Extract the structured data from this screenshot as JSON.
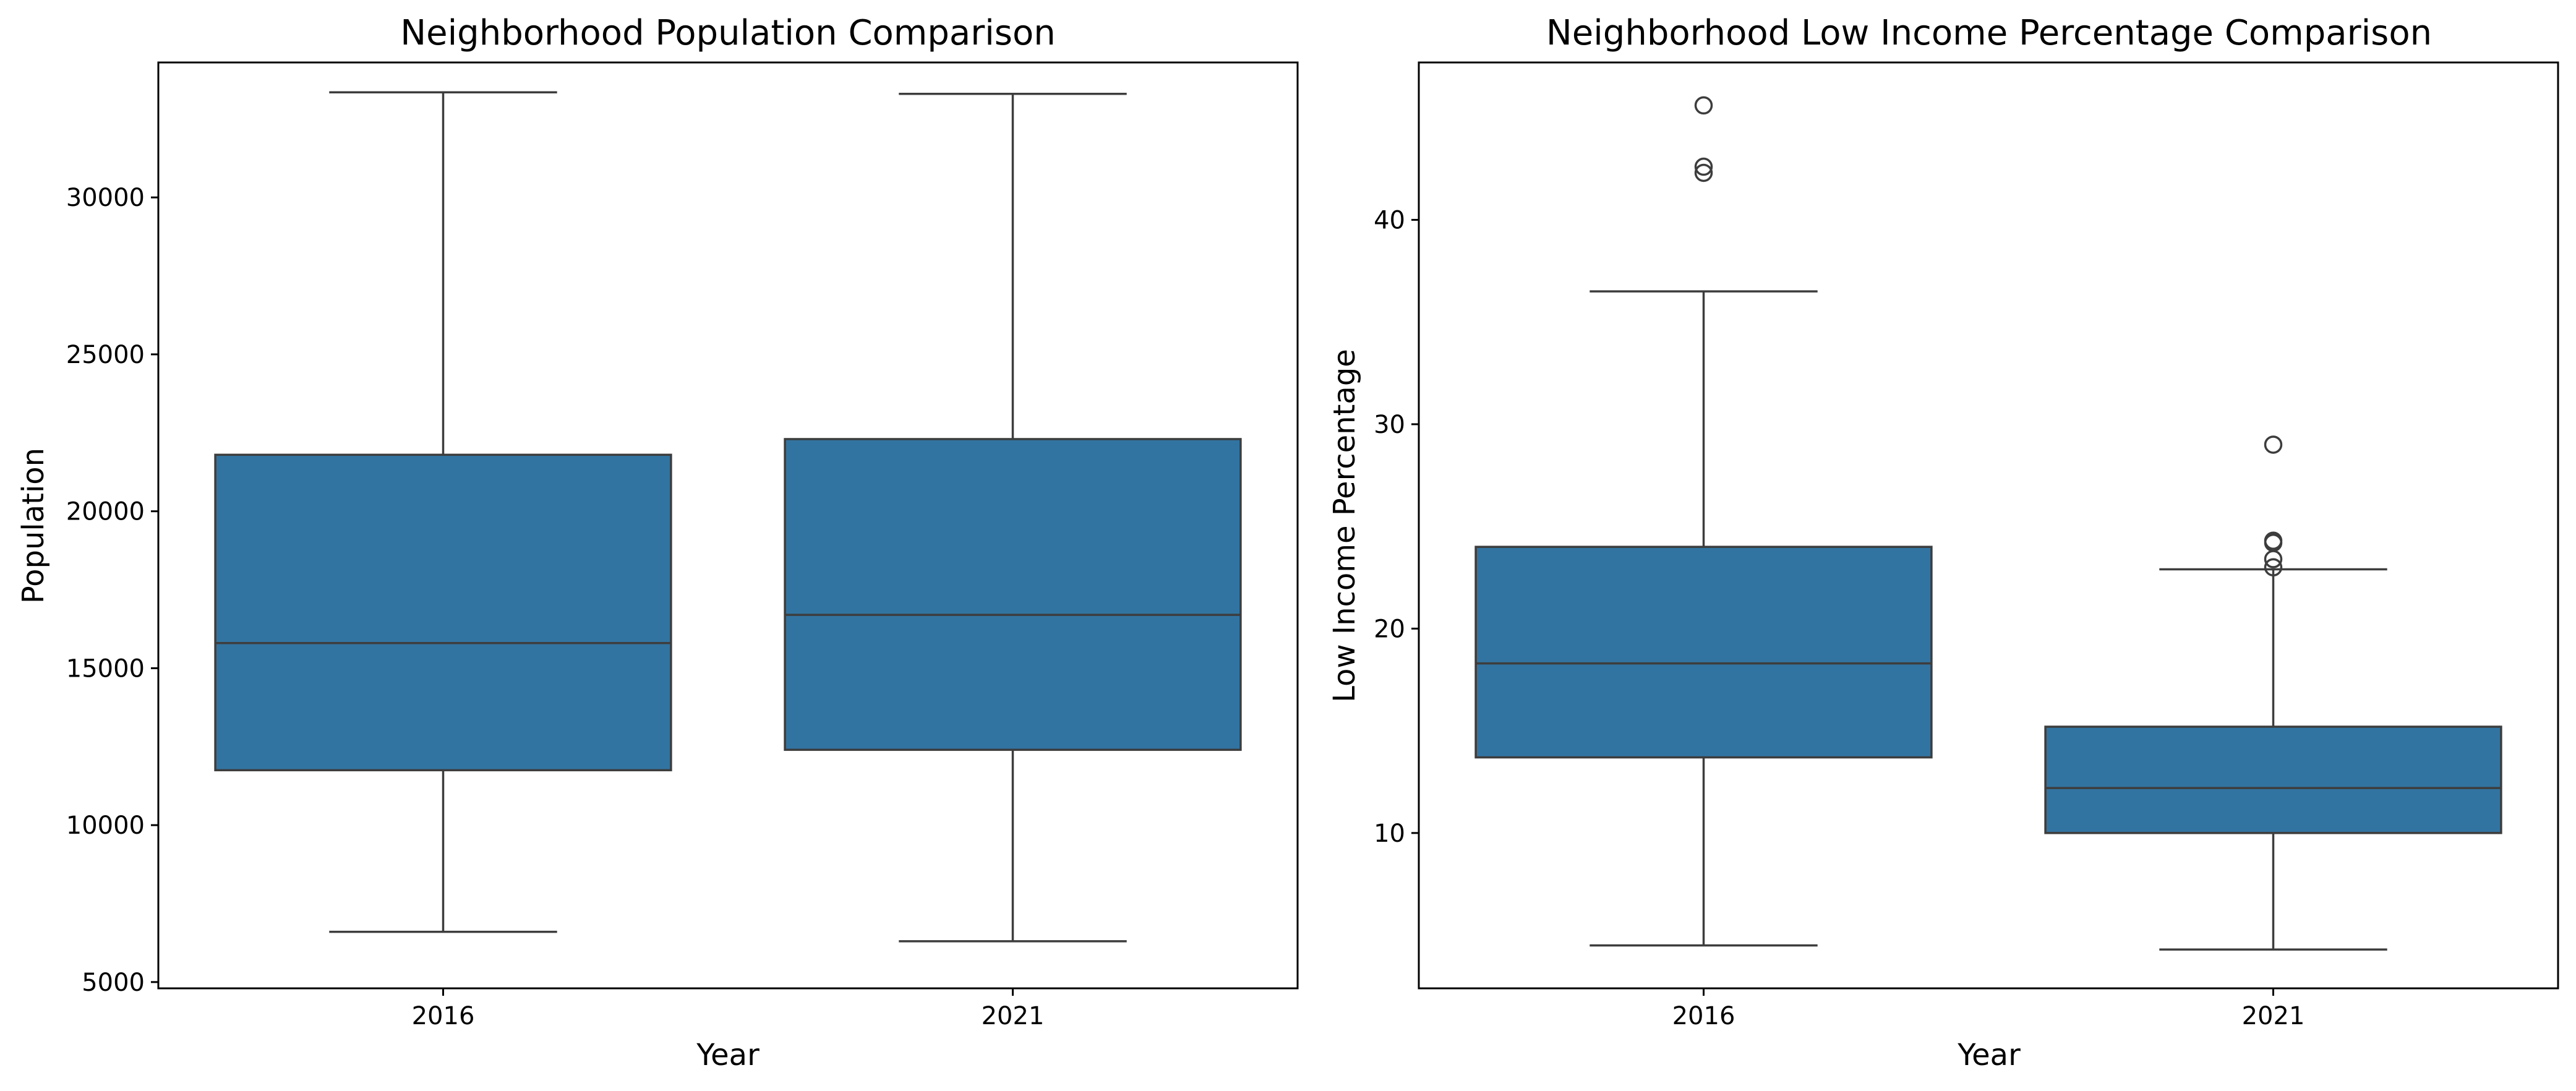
{
  "chart_data": [
    {
      "type": "box",
      "title": "Neighborhood Population Comparison",
      "xlabel": "Year",
      "ylabel": "Population",
      "categories": [
        "2016",
        "2021"
      ],
      "ylim": [
        4800,
        34300
      ],
      "yticks": [
        5000,
        10000,
        15000,
        20000,
        25000,
        30000
      ],
      "grid": false,
      "color": "#3274a1",
      "boxes": [
        {
          "category": "2016",
          "whisker_low": 6600,
          "q1": 11750,
          "median": 15800,
          "q3": 21800,
          "whisker_high": 33350,
          "outliers": []
        },
        {
          "category": "2021",
          "whisker_low": 6300,
          "q1": 12400,
          "median": 16700,
          "q3": 22300,
          "whisker_high": 33300,
          "outliers": []
        }
      ]
    },
    {
      "type": "box",
      "title": "Neighborhood Low Income Percentage Comparison",
      "xlabel": "Year",
      "ylabel": "Low Income Percentage",
      "categories": [
        "2016",
        "2021"
      ],
      "ylim": [
        2.4,
        47.7
      ],
      "yticks": [
        10,
        20,
        30,
        40
      ],
      "grid": false,
      "color": "#3274a1",
      "boxes": [
        {
          "category": "2016",
          "whisker_low": 4.5,
          "q1": 13.7,
          "median": 18.3,
          "q3": 24.0,
          "whisker_high": 36.5,
          "outliers": [
            42.3,
            42.6,
            45.6
          ]
        },
        {
          "category": "2021",
          "whisker_low": 4.3,
          "q1": 10.0,
          "median": 12.2,
          "q3": 15.2,
          "whisker_high": 22.9,
          "outliers": [
            23.0,
            23.4,
            24.2,
            24.3,
            29.0
          ]
        }
      ]
    }
  ]
}
